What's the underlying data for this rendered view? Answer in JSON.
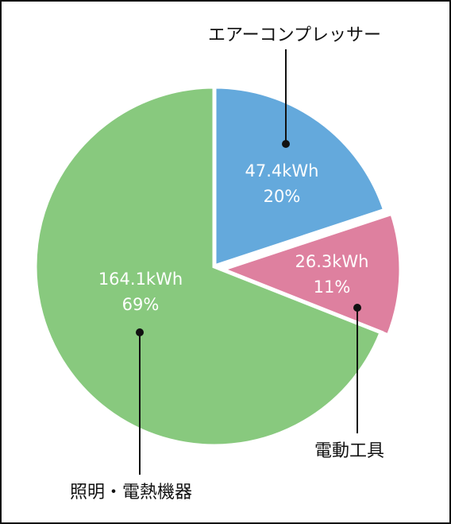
{
  "chart_data": {
    "type": "pie",
    "categories": [
      "エアーコンプレッサー",
      "電動工具",
      "照明・電熱機器"
    ],
    "values": [
      47.4,
      26.3,
      164.1
    ],
    "value_labels": [
      "47.4kWh",
      "26.3kWh",
      "164.1kWh"
    ],
    "percent_values": [
      20,
      11,
      69
    ],
    "percent_labels": [
      "20%",
      "11%",
      "69%"
    ],
    "colors": [
      "#64a9dc",
      "#de809f",
      "#88c97e"
    ]
  }
}
